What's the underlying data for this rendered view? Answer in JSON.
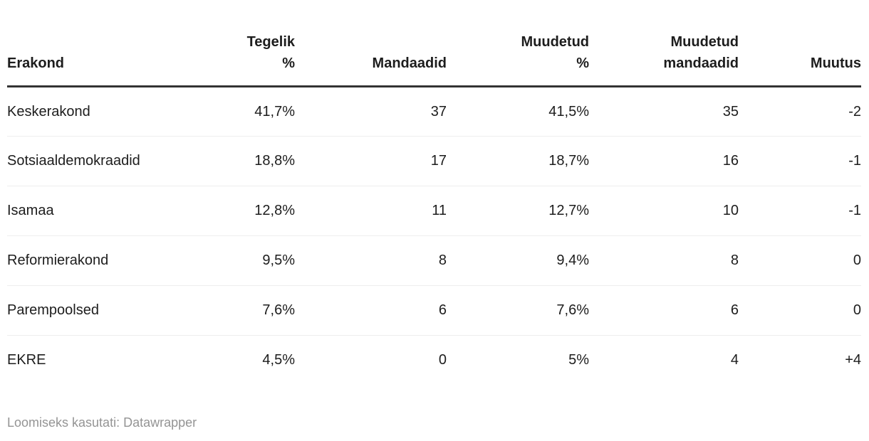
{
  "colors": {
    "text": "#1d1d1d",
    "muted": "#949494",
    "header_rule": "#333333",
    "row_divider": "#eeeeee"
  },
  "table": {
    "columns": [
      {
        "label": "Erakond"
      },
      {
        "label": "Tegelik\n%"
      },
      {
        "label": "Mandaadid"
      },
      {
        "label": "Muudetud\n%"
      },
      {
        "label": "Muudetud\nmandaadid"
      },
      {
        "label": "Muutus"
      }
    ],
    "rows": [
      [
        "Keskerakond",
        "41,7%",
        "37",
        "41,5%",
        "35",
        "-2"
      ],
      [
        "Sotsiaaldemokraadid",
        "18,8%",
        "17",
        "18,7%",
        "16",
        "-1"
      ],
      [
        "Isamaa",
        "12,8%",
        "11",
        "12,7%",
        "10",
        "-1"
      ],
      [
        "Reformierakond",
        "9,5%",
        "8",
        "9,4%",
        "8",
        "0"
      ],
      [
        "Parempoolsed",
        "7,6%",
        "6",
        "7,6%",
        "6",
        "0"
      ],
      [
        "EKRE",
        "4,5%",
        "0",
        "5%",
        "4",
        "+4"
      ]
    ]
  },
  "footer": {
    "attribution": "Loomiseks kasutati: Datawrapper"
  },
  "chart_data": {
    "type": "table",
    "columns": [
      "Erakond",
      "Tegelik %",
      "Mandaadid",
      "Muudetud %",
      "Muudetud mandaadid",
      "Muutus"
    ],
    "rows": [
      [
        "Keskerakond",
        41.7,
        37,
        41.5,
        35,
        -2
      ],
      [
        "Sotsiaaldemokraadid",
        18.8,
        17,
        18.7,
        16,
        -1
      ],
      [
        "Isamaa",
        12.8,
        11,
        12.7,
        10,
        -1
      ],
      [
        "Reformierakond",
        9.5,
        8,
        9.4,
        8,
        0
      ],
      [
        "Parempoolsed",
        7.6,
        6,
        7.6,
        6,
        0
      ],
      [
        "EKRE",
        4.5,
        0,
        5.0,
        4,
        4
      ]
    ],
    "notes": "Percent values shown with comma decimal separator; Muutus column shows +/- seat change",
    "attribution": "Loomiseks kasutati: Datawrapper"
  }
}
